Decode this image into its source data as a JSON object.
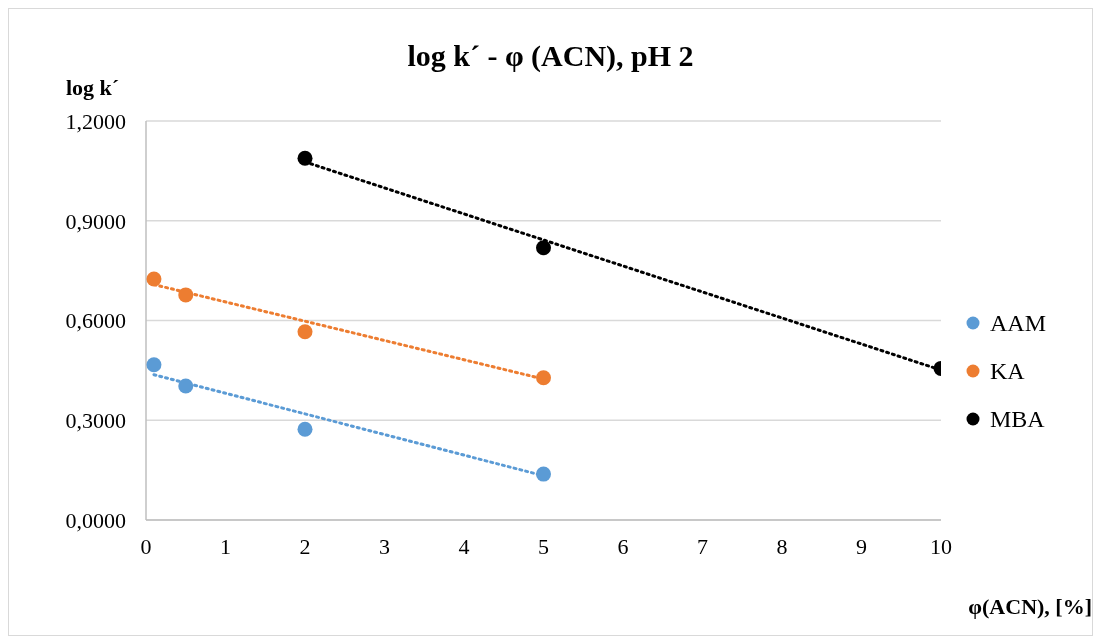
{
  "chart_data": {
    "type": "scatter",
    "title": "log k´ - φ (ACN), pH 2",
    "xlabel": "φ(ACN), [%]",
    "ylabel": "log k´",
    "xlim": [
      0,
      10
    ],
    "xticks": [
      0,
      1,
      2,
      3,
      4,
      5,
      6,
      7,
      8,
      9,
      10
    ],
    "ylim": [
      0,
      1.2
    ],
    "yticks": [
      {
        "value": 0,
        "label": "0,0000"
      },
      {
        "value": 0.3,
        "label": "0,3000"
      },
      {
        "value": 0.6,
        "label": "0,6000"
      },
      {
        "value": 0.9,
        "label": "0,9000"
      },
      {
        "value": 1.2,
        "label": "1,2000"
      }
    ],
    "grid": "y",
    "legend": "right",
    "series": [
      {
        "name": "AAM",
        "marker": "circle",
        "color": "#5b9bd5",
        "x": [
          0.1,
          0.5,
          2,
          5
        ],
        "values": [
          0.467,
          0.403,
          0.273,
          0.138
        ]
      },
      {
        "name": "KA",
        "marker": "circle",
        "color": "#ed7d31",
        "x": [
          0.1,
          0.5,
          2,
          5
        ],
        "values": [
          0.725,
          0.677,
          0.566,
          0.428
        ]
      },
      {
        "name": "MBA",
        "marker": "circle",
        "color": "#000000",
        "x": [
          2,
          5,
          10
        ],
        "values": [
          1.088,
          0.819,
          0.456
        ]
      },
      {
        "type": "line",
        "line_style": "dotted",
        "marker": "none",
        "color": "#5b9bd5",
        "x": [
          0.1,
          5
        ],
        "values": [
          0.437,
          0.133
        ]
      },
      {
        "type": "line",
        "line_style": "dotted",
        "marker": "none",
        "color": "#ed7d31",
        "x": [
          0.1,
          5
        ],
        "values": [
          0.708,
          0.424
        ]
      },
      {
        "type": "line",
        "line_style": "dotted",
        "marker": "none",
        "color": "#000000",
        "x": [
          2,
          10
        ],
        "values": [
          1.077,
          0.451
        ]
      }
    ]
  }
}
